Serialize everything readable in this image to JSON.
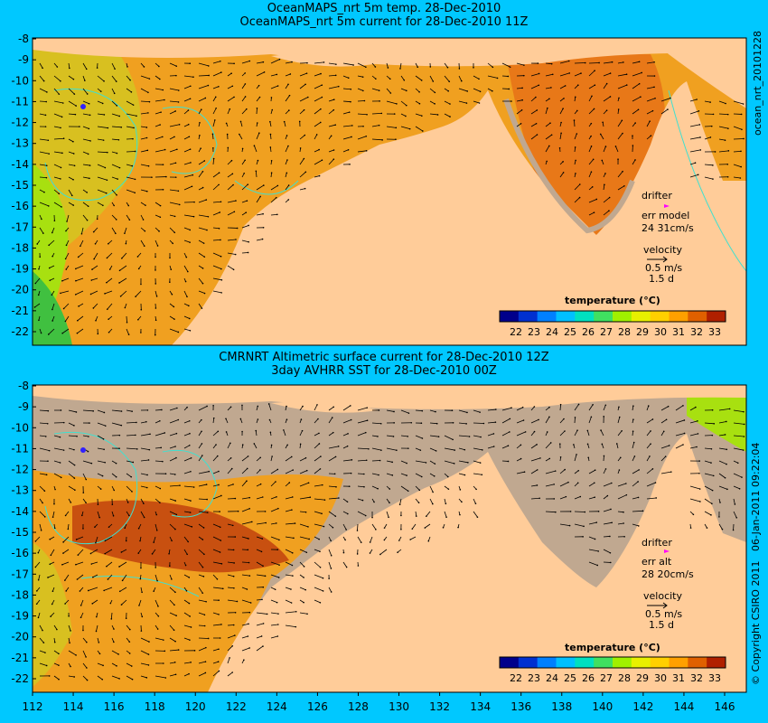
{
  "panel_top": {
    "title_line1": "OceanMAPS_nrt 5m temp. 28-Dec-2010",
    "title_line2": "OceanMAPS_nrt 5m current for 28-Dec-2010 11Z",
    "side_label": "ocean_nrt_20101228",
    "legend": {
      "drifter": "drifter",
      "err_label": "err model",
      "err_value": "24 31cm/s",
      "velocity": "velocity",
      "velocity_scale": "0.5 m/s",
      "duration": "1.5 d"
    },
    "colorbar_title": "temperature (°C)"
  },
  "panel_bottom": {
    "title_line1": "CMRNRT Altimetric surface current for 28-Dec-2010 12Z",
    "title_line2": "3day AVHRR SST for 28-Dec-2010 00Z",
    "side_label_copyright": "© Copyright CSIRO 2011",
    "side_label_date": "06-Jan-2011 09:22:04",
    "legend": {
      "drifter": "drifter",
      "err_label": "err alt",
      "err_value": "28 20cm/s",
      "velocity": "velocity",
      "velocity_scale": "0.5 m/s",
      "duration": "1.5 d"
    },
    "colorbar_title": "temperature (°C)"
  },
  "axes": {
    "y_ticks": [
      "-8",
      "-9",
      "-10",
      "-11",
      "-12",
      "-13",
      "-14",
      "-15",
      "-16",
      "-17",
      "-18",
      "-19",
      "-20",
      "-21",
      "-22"
    ],
    "x_ticks": [
      "112",
      "114",
      "116",
      "118",
      "120",
      "122",
      "124",
      "126",
      "128",
      "130",
      "132",
      "134",
      "136",
      "138",
      "140",
      "142",
      "144",
      "146"
    ]
  },
  "colorbar": {
    "labels": [
      "22",
      "23",
      "24",
      "25",
      "26",
      "27",
      "28",
      "29",
      "30",
      "31",
      "32",
      "33"
    ],
    "colors": [
      "#00008b",
      "#0030d0",
      "#0080ff",
      "#00c0ff",
      "#00e0c0",
      "#40e060",
      "#a0f000",
      "#e8f000",
      "#ffd000",
      "#ffa000",
      "#e06000",
      "#b02000"
    ]
  },
  "colors": {
    "background": "#00c8ff",
    "land": "#ffcc99",
    "sea_warm": "#f0a020",
    "sea_cool": "#a8e010",
    "shelf_grey": "#c0a890",
    "contour": "#40e0d0",
    "drifter": "#ff00ff"
  }
}
